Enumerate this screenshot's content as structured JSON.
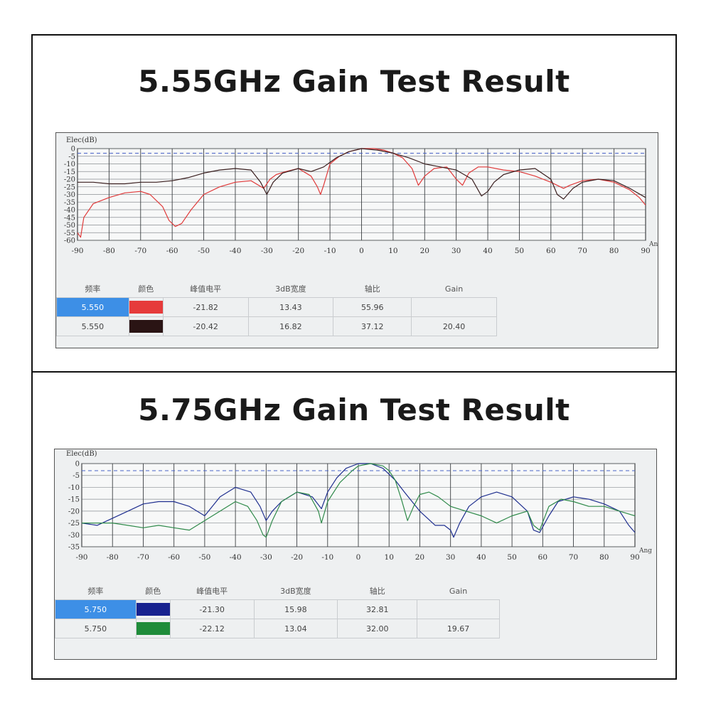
{
  "panels": [
    {
      "title": "5.55GHz Gain Test Result",
      "chart_data": {
        "type": "line",
        "ylabel": "Elec(dB)",
        "xlabel": "An",
        "xlim": [
          -90,
          90
        ],
        "ylim": [
          -60,
          0
        ],
        "xticks": [
          -90,
          -80,
          -70,
          -60,
          -50,
          -40,
          -30,
          -20,
          -10,
          0,
          10,
          20,
          30,
          40,
          50,
          60,
          70,
          80,
          90
        ],
        "yticks": [
          0,
          -5,
          -10,
          -15,
          -20,
          -25,
          -30,
          -35,
          -40,
          -45,
          -50,
          -55,
          -60
        ],
        "reference_line": -3,
        "grid": true,
        "series": [
          {
            "color": "#e03a3a",
            "x": [
              -90,
              -89,
              -88,
              -85,
              -80,
              -75,
              -70,
              -67,
              -63,
              -61,
              -59,
              -57,
              -54,
              -50,
              -45,
              -40,
              -35,
              -31,
              -29,
              -27,
              -24,
              -20,
              -16,
              -14,
              -13,
              -12,
              -10,
              -7,
              -4,
              0,
              4,
              7,
              10,
              13,
              16,
              18,
              20,
              23,
              27,
              30,
              32,
              34,
              37,
              40,
              45,
              50,
              55,
              60,
              64,
              66,
              70,
              75,
              80,
              85,
              88,
              90
            ],
            "y": [
              -55,
              -58,
              -45,
              -36,
              -32,
              -29,
              -28,
              -30,
              -38,
              -47,
              -51,
              -49,
              -40,
              -30,
              -25,
              -22,
              -21,
              -26,
              -20,
              -17,
              -15,
              -13,
              -18,
              -25,
              -30,
              -24,
              -10,
              -5,
              -2,
              0,
              0,
              -1,
              -3,
              -6,
              -13,
              -24,
              -18,
              -13,
              -12,
              -20,
              -24,
              -16,
              -12,
              -12,
              -14,
              -15,
              -18,
              -22,
              -26,
              -24,
              -21,
              -20,
              -22,
              -27,
              -32,
              -37
            ]
          },
          {
            "color": "#3a1f1f",
            "x": [
              -90,
              -85,
              -80,
              -75,
              -70,
              -65,
              -60,
              -55,
              -50,
              -45,
              -40,
              -35,
              -32,
              -30,
              -28,
              -25,
              -20,
              -16,
              -12,
              -8,
              -4,
              0,
              5,
              10,
              15,
              20,
              25,
              30,
              35,
              38,
              40,
              42,
              45,
              50,
              55,
              60,
              62,
              64,
              67,
              70,
              75,
              80,
              85,
              90
            ],
            "y": [
              -22,
              -22,
              -23,
              -23,
              -22,
              -22,
              -21,
              -19,
              -16,
              -14,
              -13,
              -14,
              -22,
              -30,
              -22,
              -16,
              -13,
              -15,
              -12,
              -6,
              -2,
              0,
              -1,
              -3,
              -6,
              -10,
              -12,
              -14,
              -20,
              -31,
              -28,
              -22,
              -17,
              -14,
              -13,
              -20,
              -30,
              -33,
              -26,
              -22,
              -20,
              -21,
              -26,
              -32
            ]
          }
        ]
      },
      "table": {
        "headers": [
          "频率",
          "颜色",
          "峰值电平",
          "3dB宽度",
          "轴比",
          "Gain"
        ],
        "rows": [
          {
            "freq": "5.550",
            "color": "#e63b3b",
            "peak": "-21.82",
            "bw": "13.43",
            "ar": "55.96",
            "gain": ""
          },
          {
            "freq": "5.550",
            "color": "#2a1414",
            "peak": "-20.42",
            "bw": "16.82",
            "ar": "37.12",
            "gain": "20.40"
          }
        ]
      }
    },
    {
      "title": "5.75GHz Gain Test Result",
      "chart_data": {
        "type": "line",
        "ylabel": "Elec(dB)",
        "xlabel": "Ang",
        "xlim": [
          -90,
          90
        ],
        "ylim": [
          -35,
          0
        ],
        "xticks": [
          -90,
          -80,
          -70,
          -60,
          -50,
          -40,
          -30,
          -20,
          -10,
          0,
          10,
          20,
          30,
          40,
          50,
          60,
          70,
          80,
          90
        ],
        "yticks": [
          0,
          -5,
          -10,
          -15,
          -20,
          -25,
          -30,
          -35
        ],
        "reference_line": -3,
        "grid": true,
        "series": [
          {
            "color": "#1f2f8f",
            "x": [
              -90,
              -85,
              -80,
              -75,
              -70,
              -65,
              -60,
              -55,
              -50,
              -45,
              -40,
              -35,
              -32,
              -30,
              -28,
              -25,
              -20,
              -15,
              -12,
              -10,
              -7,
              -4,
              0,
              4,
              8,
              12,
              15,
              20,
              25,
              28,
              30,
              31,
              33,
              36,
              40,
              45,
              50,
              55,
              57,
              59,
              62,
              65,
              70,
              75,
              80,
              85,
              88,
              90
            ],
            "y": [
              -25,
              -26,
              -23,
              -20,
              -17,
              -16,
              -16,
              -18,
              -22,
              -14,
              -10,
              -12,
              -18,
              -24,
              -20,
              -16,
              -12,
              -14,
              -19,
              -12,
              -6,
              -2,
              0,
              0,
              -2,
              -7,
              -12,
              -20,
              -26,
              -26,
              -28,
              -31,
              -25,
              -18,
              -14,
              -12,
              -14,
              -20,
              -28,
              -29,
              -22,
              -16,
              -14,
              -15,
              -17,
              -20,
              -26,
              -29
            ]
          },
          {
            "color": "#2f8a4a",
            "x": [
              -90,
              -85,
              -80,
              -75,
              -70,
              -65,
              -60,
              -55,
              -50,
              -45,
              -40,
              -36,
              -33,
              -31,
              -30,
              -28,
              -25,
              -20,
              -16,
              -13,
              -12,
              -10,
              -6,
              -2,
              0,
              4,
              8,
              10,
              12,
              14,
              16,
              18,
              20,
              23,
              26,
              30,
              35,
              40,
              45,
              50,
              55,
              57,
              59,
              62,
              66,
              70,
              75,
              80,
              85,
              90
            ],
            "y": [
              -25,
              -25,
              -25,
              -26,
              -27,
              -26,
              -27,
              -28,
              -24,
              -20,
              -16,
              -18,
              -24,
              -30,
              -31,
              -24,
              -16,
              -12,
              -13,
              -20,
              -25,
              -16,
              -8,
              -3,
              -1,
              0,
              -1,
              -3,
              -7,
              -15,
              -24,
              -18,
              -13,
              -12,
              -14,
              -18,
              -20,
              -22,
              -25,
              -22,
              -20,
              -26,
              -28,
              -18,
              -15,
              -16,
              -18,
              -18,
              -20,
              -22
            ]
          }
        ]
      },
      "table": {
        "headers": [
          "频率",
          "颜色",
          "峰值电平",
          "3dB宽度",
          "轴比",
          "Gain"
        ],
        "rows": [
          {
            "freq": "5.750",
            "color": "#18228f",
            "peak": "-21.30",
            "bw": "15.98",
            "ar": "32.81",
            "gain": ""
          },
          {
            "freq": "5.750",
            "color": "#1f8c3a",
            "peak": "-22.12",
            "bw": "13.04",
            "ar": "32.00",
            "gain": "19.67"
          }
        ]
      }
    }
  ]
}
